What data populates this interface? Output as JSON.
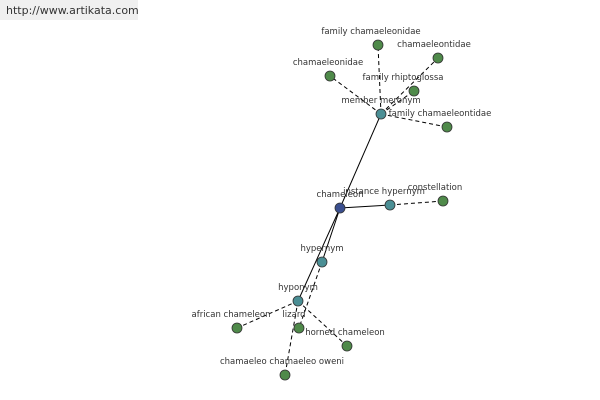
{
  "header": {
    "url": "http://www.artikata.com"
  },
  "nodes": [
    {
      "label": "chameleon"
    },
    {
      "label": "member meronym"
    },
    {
      "label": "instance hypernym"
    },
    {
      "label": "hypernym"
    },
    {
      "label": "hyponym"
    },
    {
      "label": "family chamaeleonidae"
    },
    {
      "label": "chamaeleontidae"
    },
    {
      "label": "chamaeleonidae"
    },
    {
      "label": "family rhiptoglossa"
    },
    {
      "label": "family chamaeleontidae"
    },
    {
      "label": "constellation"
    },
    {
      "label": "african chameleon"
    },
    {
      "label": "lizard"
    },
    {
      "label": "horned chameleon"
    },
    {
      "label": "chamaeleo chamaeleo oweni"
    }
  ]
}
